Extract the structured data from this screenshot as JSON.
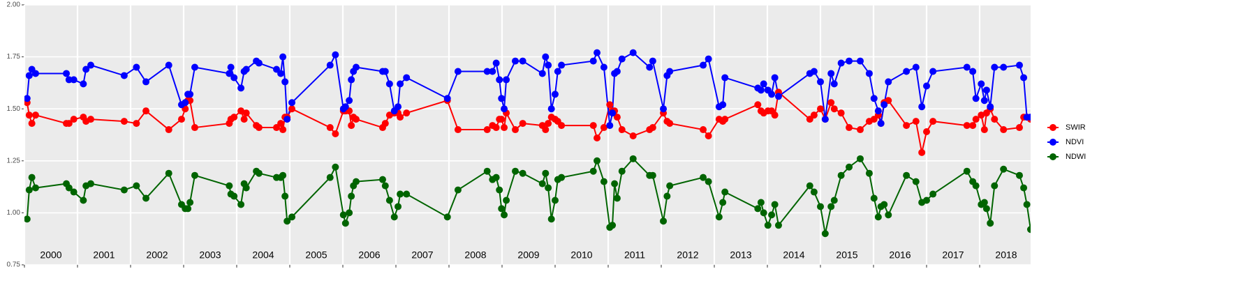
{
  "chart_data": {
    "type": "line",
    "x": [
      2000.05,
      2000.09,
      2000.14,
      2000.21,
      2000.79,
      2000.84,
      2000.93,
      2001.11,
      2001.16,
      2001.25,
      2001.88,
      2002.11,
      2002.29,
      2002.72,
      2002.96,
      2003.03,
      2003.08,
      2003.12,
      2003.21,
      2003.86,
      2003.89,
      2003.95,
      2004.08,
      2004.14,
      2004.18,
      2004.37,
      2004.42,
      2004.75,
      2004.83,
      2004.87,
      2004.91,
      2004.95,
      2005.04,
      2005.76,
      2005.86,
      2006.01,
      2006.05,
      2006.12,
      2006.16,
      2006.2,
      2006.25,
      2006.75,
      2006.8,
      2006.88,
      2006.97,
      2007.04,
      2007.08,
      2007.2,
      2007.97,
      2008.17,
      2008.72,
      2008.82,
      2008.89,
      2008.95,
      2008.99,
      2009.04,
      2009.08,
      2009.25,
      2009.39,
      2009.76,
      2009.82,
      2009.87,
      2009.93,
      2010.0,
      2010.05,
      2010.12,
      2010.72,
      2010.79,
      2010.92,
      2011.03,
      2011.08,
      2011.12,
      2011.17,
      2011.26,
      2011.47,
      2011.78,
      2011.84,
      2012.04,
      2012.11,
      2012.16,
      2012.79,
      2012.89,
      2013.09,
      2013.16,
      2013.2,
      2013.82,
      2013.88,
      2013.93,
      2014.01,
      2014.08,
      2014.14,
      2014.21,
      2014.8,
      2014.88,
      2015.0,
      2015.09,
      2015.2,
      2015.26,
      2015.39,
      2015.54,
      2015.75,
      2015.92,
      2016.01,
      2016.09,
      2016.14,
      2016.2,
      2016.28,
      2016.62,
      2016.8,
      2016.91,
      2017.0,
      2017.12,
      2017.76,
      2017.87,
      2017.93,
      2018.03,
      2018.09,
      2018.13,
      2018.2,
      2018.28,
      2018.45,
      2018.75,
      2018.83,
      2018.89,
      2018.96
    ],
    "series": [
      {
        "name": "SWIR",
        "color": "#ff0000",
        "values": [
          1.53,
          1.47,
          1.43,
          1.47,
          1.43,
          1.43,
          1.45,
          1.46,
          1.44,
          1.45,
          1.44,
          1.43,
          1.49,
          1.4,
          1.45,
          1.5,
          1.54,
          1.54,
          1.41,
          1.43,
          1.45,
          1.46,
          1.49,
          1.45,
          1.48,
          1.42,
          1.41,
          1.41,
          1.43,
          1.4,
          1.46,
          1.46,
          1.5,
          1.41,
          1.38,
          1.49,
          1.49,
          1.49,
          1.42,
          1.46,
          1.45,
          1.41,
          1.43,
          1.47,
          1.48,
          1.48,
          1.46,
          1.48,
          1.54,
          1.4,
          1.4,
          1.42,
          1.41,
          1.45,
          1.45,
          1.41,
          1.48,
          1.4,
          1.43,
          1.42,
          1.4,
          1.43,
          1.46,
          1.45,
          1.44,
          1.42,
          1.42,
          1.36,
          1.41,
          1.52,
          1.49,
          1.49,
          1.46,
          1.4,
          1.37,
          1.4,
          1.41,
          1.48,
          1.44,
          1.43,
          1.4,
          1.37,
          1.45,
          1.44,
          1.45,
          1.52,
          1.49,
          1.48,
          1.49,
          1.49,
          1.47,
          1.58,
          1.45,
          1.47,
          1.5,
          1.45,
          1.53,
          1.5,
          1.48,
          1.41,
          1.4,
          1.44,
          1.45,
          1.47,
          1.43,
          1.53,
          1.54,
          1.42,
          1.44,
          1.29,
          1.39,
          1.44,
          1.42,
          1.42,
          1.45,
          1.47,
          1.4,
          1.48,
          1.5,
          1.45,
          1.4,
          1.41,
          1.46,
          1.46,
          1.45
        ]
      },
      {
        "name": "NDVI",
        "color": "#0000ff",
        "values": [
          1.55,
          1.66,
          1.69,
          1.67,
          1.67,
          1.64,
          1.64,
          1.62,
          1.69,
          1.71,
          1.66,
          1.7,
          1.63,
          1.71,
          1.52,
          1.53,
          1.57,
          1.57,
          1.7,
          1.67,
          1.7,
          1.65,
          1.6,
          1.68,
          1.69,
          1.73,
          1.72,
          1.69,
          1.67,
          1.75,
          1.63,
          1.45,
          1.53,
          1.71,
          1.76,
          1.5,
          1.51,
          1.54,
          1.64,
          1.68,
          1.7,
          1.68,
          1.68,
          1.62,
          1.49,
          1.51,
          1.62,
          1.65,
          1.55,
          1.68,
          1.68,
          1.68,
          1.72,
          1.64,
          1.55,
          1.5,
          1.64,
          1.73,
          1.73,
          1.67,
          1.75,
          1.71,
          1.5,
          1.57,
          1.68,
          1.71,
          1.73,
          1.77,
          1.7,
          1.42,
          1.48,
          1.67,
          1.68,
          1.74,
          1.77,
          1.7,
          1.73,
          1.5,
          1.66,
          1.68,
          1.71,
          1.74,
          1.51,
          1.52,
          1.65,
          1.6,
          1.59,
          1.62,
          1.59,
          1.57,
          1.65,
          1.56,
          1.67,
          1.68,
          1.63,
          1.45,
          1.67,
          1.62,
          1.72,
          1.73,
          1.73,
          1.67,
          1.55,
          1.49,
          1.43,
          1.52,
          1.63,
          1.68,
          1.7,
          1.51,
          1.61,
          1.68,
          1.7,
          1.68,
          1.55,
          1.62,
          1.54,
          1.59,
          1.51,
          1.7,
          1.7,
          1.71,
          1.65,
          1.46,
          1.46
        ]
      },
      {
        "name": "NDWI",
        "color": "#006400",
        "values": [
          0.97,
          1.11,
          1.17,
          1.12,
          1.14,
          1.12,
          1.1,
          1.06,
          1.13,
          1.14,
          1.11,
          1.13,
          1.07,
          1.19,
          1.04,
          1.02,
          1.02,
          1.05,
          1.18,
          1.13,
          1.09,
          1.08,
          1.04,
          1.14,
          1.12,
          1.2,
          1.19,
          1.17,
          1.17,
          1.18,
          1.08,
          0.96,
          0.98,
          1.17,
          1.22,
          0.99,
          0.95,
          1.0,
          1.08,
          1.13,
          1.15,
          1.16,
          1.13,
          1.06,
          0.98,
          1.03,
          1.09,
          1.09,
          0.98,
          1.11,
          1.2,
          1.16,
          1.17,
          1.11,
          1.02,
          0.99,
          1.06,
          1.2,
          1.19,
          1.14,
          1.19,
          1.12,
          0.97,
          1.06,
          1.16,
          1.17,
          1.2,
          1.25,
          1.15,
          0.93,
          0.94,
          1.14,
          1.07,
          1.2,
          1.26,
          1.18,
          1.18,
          0.96,
          1.08,
          1.13,
          1.17,
          1.15,
          0.98,
          1.05,
          1.1,
          1.02,
          1.05,
          1.0,
          0.94,
          0.99,
          1.04,
          0.94,
          1.13,
          1.1,
          1.03,
          0.9,
          1.03,
          1.06,
          1.18,
          1.22,
          1.26,
          1.19,
          1.07,
          0.98,
          1.03,
          1.04,
          0.99,
          1.18,
          1.15,
          1.05,
          1.06,
          1.09,
          1.2,
          1.15,
          1.13,
          1.04,
          1.05,
          1.02,
          0.95,
          1.13,
          1.21,
          1.18,
          1.12,
          1.04,
          0.92
        ]
      }
    ],
    "xlim": [
      2000,
      2019
    ],
    "xticks": [
      2000,
      2001,
      2002,
      2003,
      2004,
      2005,
      2006,
      2007,
      2008,
      2009,
      2010,
      2011,
      2012,
      2013,
      2014,
      2015,
      2016,
      2017,
      2018,
      2019
    ],
    "year_labels": [
      "2000",
      "2001",
      "2002",
      "2003",
      "2004",
      "2005",
      "2006",
      "2007",
      "2008",
      "2009",
      "2010",
      "2011",
      "2012",
      "2013",
      "2014",
      "2015",
      "2016",
      "2017",
      "2018"
    ],
    "ylim": [
      0.75,
      2.0
    ],
    "yticks": [
      0.75,
      {
        "value": 1,
        "label": "1.00"
      },
      1.25,
      {
        "value": 1.5,
        "label": "1.50"
      },
      1.75,
      {
        "value": 2,
        "label": "2.00"
      }
    ],
    "grid": true,
    "legend": "right"
  }
}
